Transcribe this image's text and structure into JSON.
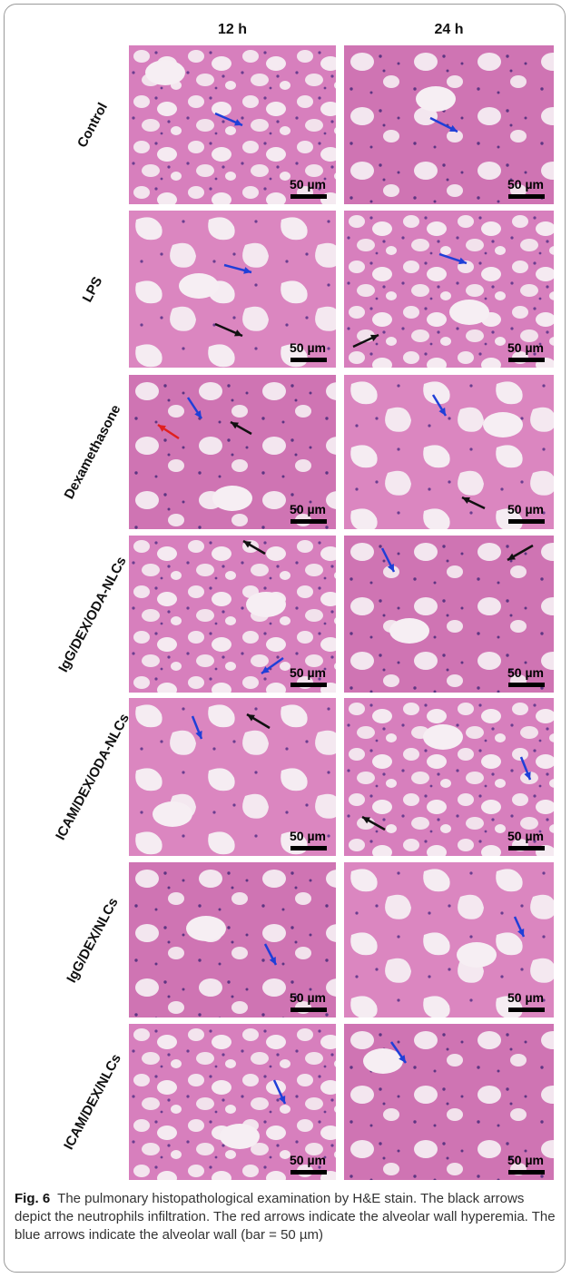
{
  "header": {
    "columns": [
      "12 h",
      "24 h"
    ]
  },
  "rows": [
    {
      "label": "Control",
      "panels": [
        {
          "scale_label": "50 µm"
        },
        {
          "scale_label": "50 µm"
        }
      ]
    },
    {
      "label": "LPS",
      "panels": [
        {
          "scale_label": "50 µm"
        },
        {
          "scale_label": "50 µm"
        }
      ]
    },
    {
      "label": "Dexamethasone",
      "panels": [
        {
          "scale_label": "50 µm"
        },
        {
          "scale_label": "50 µm"
        }
      ]
    },
    {
      "label": "IgG/DEX/ODA-NLCs",
      "panels": [
        {
          "scale_label": "50 µm"
        },
        {
          "scale_label": "50 µm"
        }
      ]
    },
    {
      "label": "ICAM/DEX/ODA-NLCs",
      "panels": [
        {
          "scale_label": "50 µm"
        },
        {
          "scale_label": "50 µm"
        }
      ]
    },
    {
      "label": "IgG/DEX/NLCs",
      "panels": [
        {
          "scale_label": "50 µm"
        },
        {
          "scale_label": "50 µm"
        }
      ]
    },
    {
      "label": "ICAM/DEX/NLCs",
      "panels": [
        {
          "scale_label": "50 µm"
        },
        {
          "scale_label": "50 µm"
        }
      ]
    }
  ],
  "caption": {
    "label": "Fig. 6",
    "text": "The pulmonary histopathological examination by H&E stain. The black arrows depict the neutrophils infiltration. The red arrows indicate the alveolar wall hyperemia. The blue arrows indicate the alveolar wall (bar = 50 µm)"
  }
}
